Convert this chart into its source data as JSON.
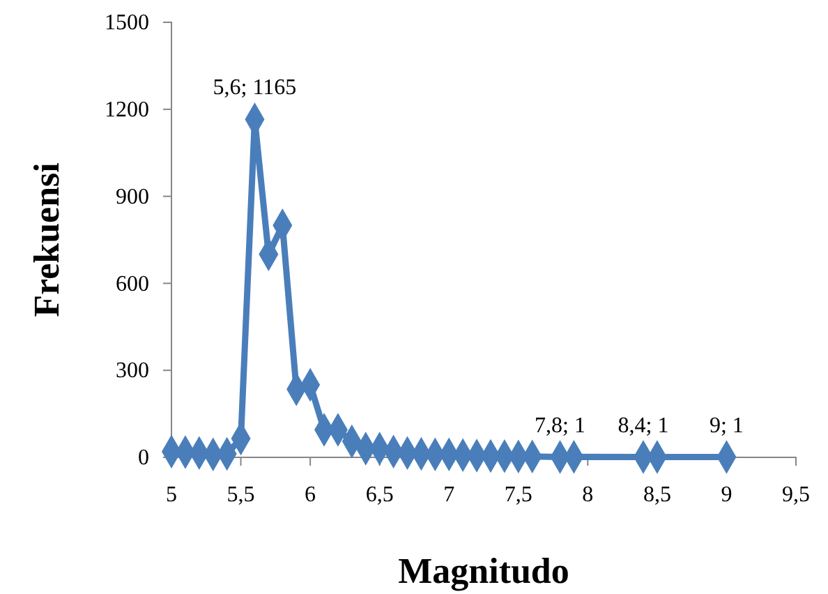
{
  "chart_data": {
    "type": "line",
    "xlabel": "Magnitudo",
    "ylabel": "Frekuensi",
    "x": [
      5,
      5.1,
      5.2,
      5.3,
      5.4,
      5.5,
      5.6,
      5.7,
      5.8,
      5.9,
      6,
      6.1,
      6.2,
      6.3,
      6.4,
      6.5,
      6.6,
      6.7,
      6.8,
      6.9,
      7,
      7.1,
      7.2,
      7.3,
      7.4,
      7.5,
      7.6,
      7.8,
      7.9,
      8.4,
      8.5,
      9
    ],
    "series": [
      {
        "color": "#4a7ebb",
        "values": [
          20,
          18,
          15,
          10,
          12,
          65,
          1165,
          700,
          800,
          235,
          250,
          95,
          95,
          55,
          30,
          30,
          20,
          15,
          12,
          10,
          10,
          8,
          6,
          5,
          4,
          3,
          3,
          1,
          2,
          1,
          1,
          1
        ]
      }
    ],
    "xlim": [
      5,
      9.5
    ],
    "xticks": [
      {
        "value": 5,
        "label": "5"
      },
      {
        "value": 5.5,
        "label": "5,5"
      },
      {
        "value": 6,
        "label": "6"
      },
      {
        "value": 6.5,
        "label": "6,5"
      },
      {
        "value": 7,
        "label": "7"
      },
      {
        "value": 7.5,
        "label": "7,5"
      },
      {
        "value": 8,
        "label": "8"
      },
      {
        "value": 8.5,
        "label": "8,5"
      },
      {
        "value": 9,
        "label": "9"
      },
      {
        "value": 9.5,
        "label": "9,5"
      }
    ],
    "ylim": [
      0,
      1500
    ],
    "yticks": [
      0,
      300,
      600,
      900,
      1200,
      1500
    ],
    "annotations": [
      {
        "text": "5,6; 1165",
        "x": 5.6,
        "y": 1165
      },
      {
        "text": "7,8; 1",
        "x": 7.8,
        "y": 1
      },
      {
        "text": "8,4; 1",
        "x": 8.4,
        "y": 1
      },
      {
        "text": "9; 1",
        "x": 9,
        "y": 1
      }
    ],
    "marker": "diamond"
  }
}
